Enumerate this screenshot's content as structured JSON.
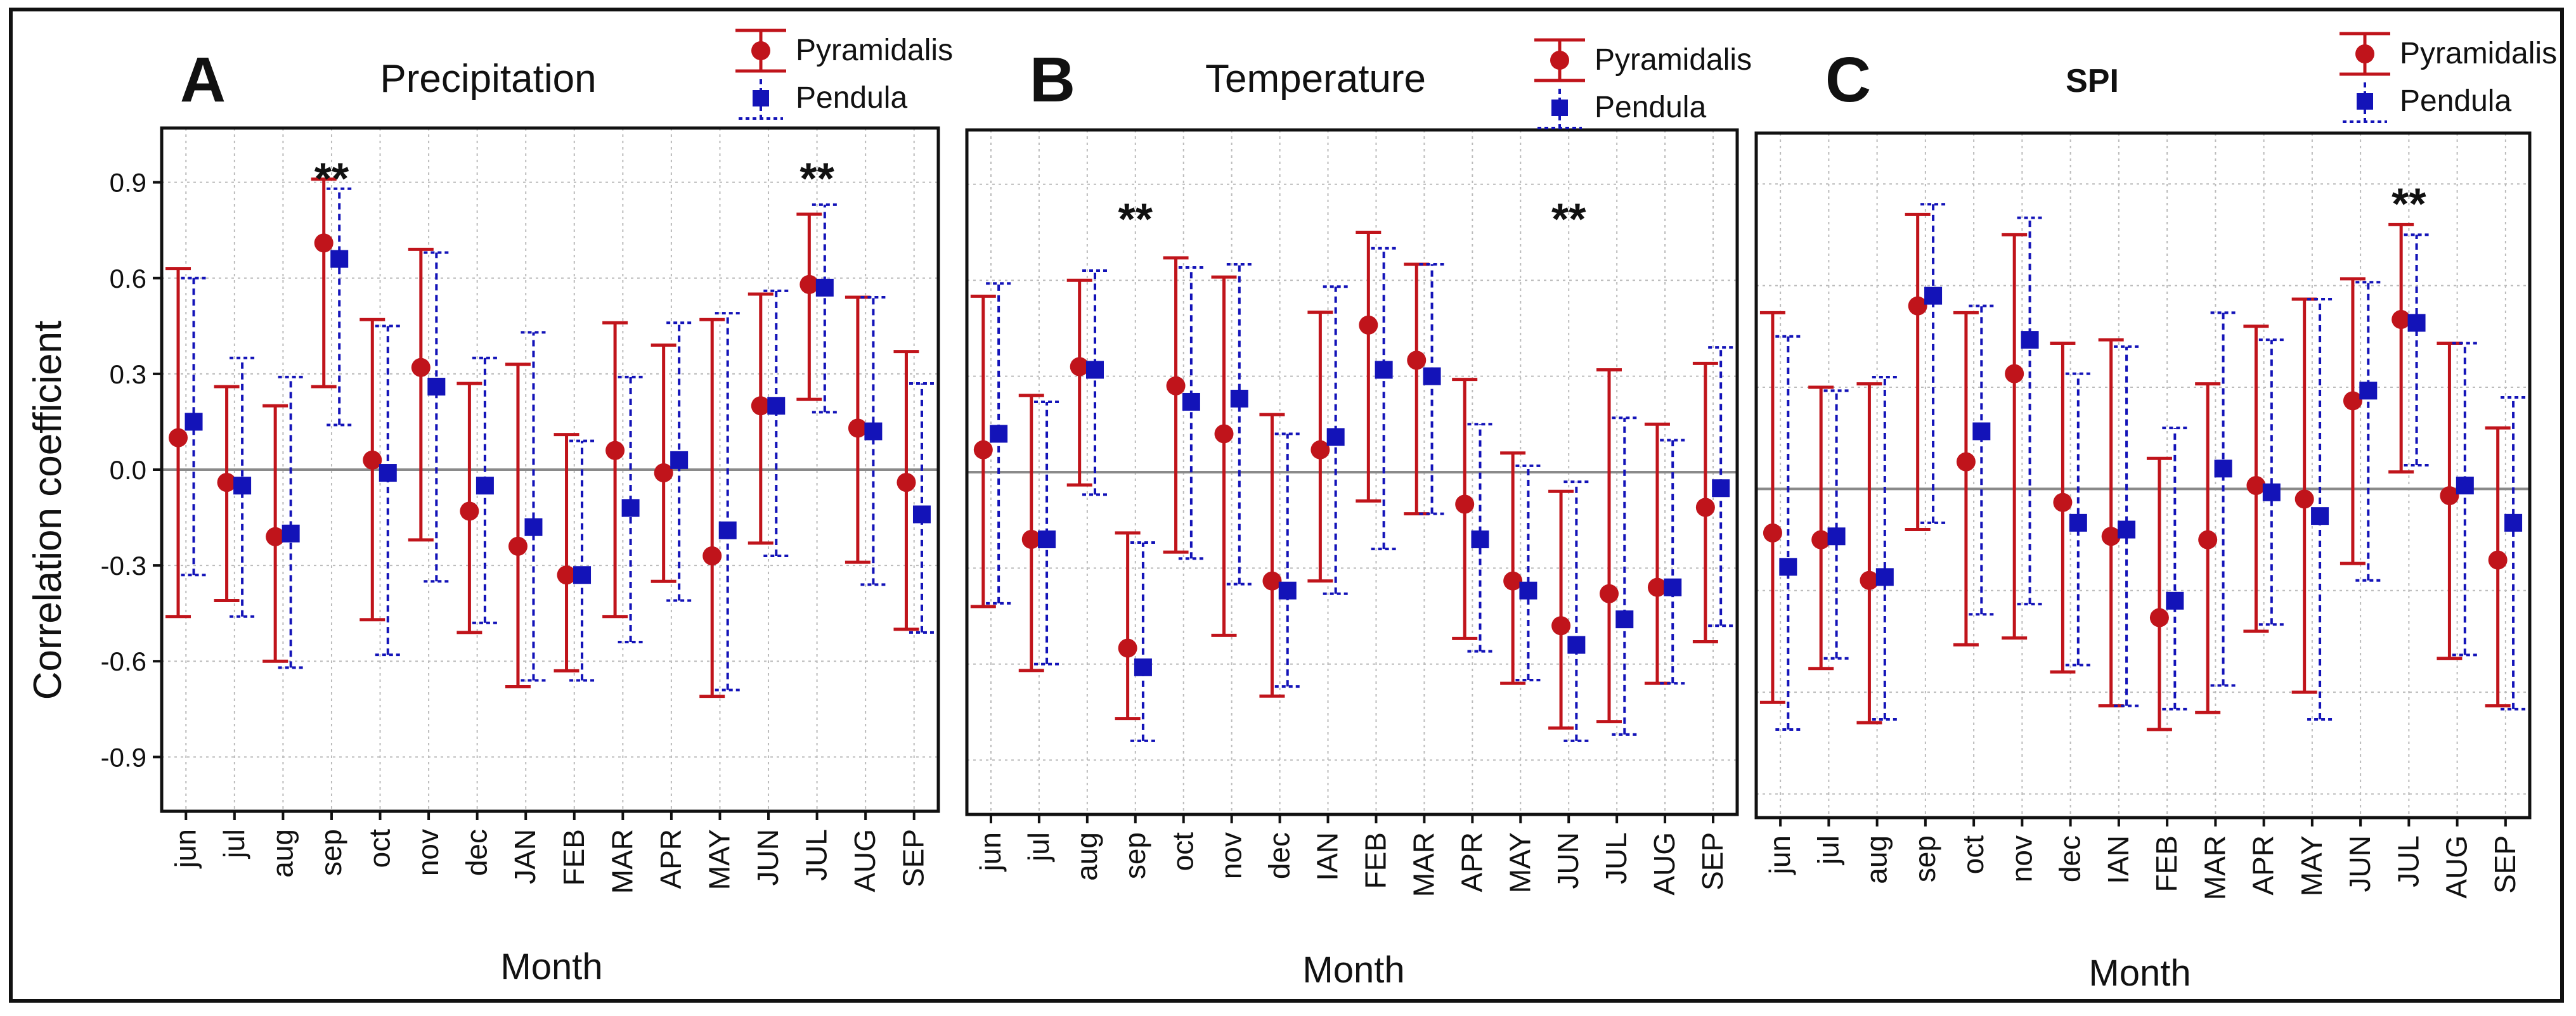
{
  "y_axis_label": "Correlation coefficient",
  "colors": {
    "pyramidalis": "#c0141b",
    "pendula": "#1313b8",
    "grid": "#bbbbbb",
    "zero_line": "#8a8a8a"
  },
  "legend": {
    "pyramidalis": "Pyramidalis",
    "pendula": "Pendula"
  },
  "chart_data": [
    {
      "type": "scatter",
      "panel_letter": "A",
      "title": "Precipitation",
      "xlabel": "Month",
      "ylabel": "Correlation coefficient",
      "ylim": [
        -1.07,
        1.07
      ],
      "y_ticks": [
        "0.9",
        "0.6",
        "0.3",
        "0.0",
        "-0.3",
        "-0.6",
        "-0.9"
      ],
      "categories": [
        "jun",
        "jul",
        "aug",
        "sep",
        "oct",
        "nov",
        "dec",
        "JAN",
        "FEB",
        "MAR",
        "APR",
        "MAY",
        "JUN",
        "JUL",
        "AUG",
        "SEP"
      ],
      "significance": [
        {
          "category": "sep",
          "label": "**",
          "y": 0.9
        },
        {
          "category": "JUL",
          "label": "**",
          "y": 0.9
        }
      ],
      "series": [
        {
          "name": "Pyramidalis",
          "marker": "circle",
          "error_bar": "solid",
          "values": [
            0.1,
            -0.04,
            -0.21,
            0.71,
            0.03,
            0.32,
            -0.13,
            -0.24,
            -0.33,
            0.06,
            -0.01,
            -0.27,
            0.2,
            0.58,
            0.13,
            -0.04
          ],
          "lower": [
            -0.46,
            -0.41,
            -0.6,
            0.26,
            -0.47,
            -0.22,
            -0.51,
            -0.68,
            -0.63,
            -0.46,
            -0.35,
            -0.71,
            -0.23,
            0.22,
            -0.29,
            -0.5
          ],
          "upper": [
            0.63,
            0.26,
            0.2,
            0.91,
            0.47,
            0.69,
            0.27,
            0.33,
            0.11,
            0.46,
            0.39,
            0.47,
            0.55,
            0.8,
            0.54,
            0.37
          ]
        },
        {
          "name": "Pendula",
          "marker": "square",
          "error_bar": "dashed",
          "values": [
            0.15,
            -0.05,
            -0.2,
            0.66,
            -0.01,
            0.26,
            -0.05,
            -0.18,
            -0.33,
            -0.12,
            0.03,
            -0.19,
            0.2,
            0.57,
            0.12,
            -0.14
          ],
          "lower": [
            -0.33,
            -0.46,
            -0.62,
            0.14,
            -0.58,
            -0.35,
            -0.48,
            -0.66,
            -0.66,
            -0.54,
            -0.41,
            -0.69,
            -0.27,
            0.18,
            -0.36,
            -0.51
          ],
          "upper": [
            0.6,
            0.35,
            0.29,
            0.88,
            0.45,
            0.68,
            0.35,
            0.43,
            0.09,
            0.29,
            0.46,
            0.49,
            0.56,
            0.83,
            0.54,
            0.27
          ]
        }
      ]
    },
    {
      "type": "scatter",
      "panel_letter": "B",
      "title": "Temperature",
      "xlabel": "Month",
      "ylim": [
        -1.07,
        1.07
      ],
      "categories": [
        "jun",
        "jul",
        "aug",
        "sep",
        "oct",
        "nov",
        "dec",
        "IAN",
        "FEB",
        "MAR",
        "APR",
        "MAY",
        "JUN",
        "JUL",
        "AUG",
        "SEP"
      ],
      "significance": [
        {
          "category": "sep",
          "label": "**",
          "y": 0.78
        },
        {
          "category": "JUN",
          "label": "**",
          "y": 0.78
        }
      ],
      "series": [
        {
          "name": "Pyramidalis",
          "marker": "circle",
          "error_bar": "solid",
          "values": [
            0.07,
            -0.21,
            0.33,
            -0.55,
            0.27,
            0.12,
            -0.34,
            0.07,
            0.46,
            0.35,
            -0.1,
            -0.34,
            -0.48,
            -0.38,
            -0.36,
            -0.11
          ],
          "lower": [
            -0.42,
            -0.62,
            -0.04,
            -0.77,
            -0.25,
            -0.51,
            -0.7,
            -0.34,
            -0.09,
            -0.13,
            -0.52,
            -0.66,
            -0.8,
            -0.78,
            -0.66,
            -0.53
          ],
          "upper": [
            0.55,
            0.24,
            0.6,
            -0.19,
            0.67,
            0.61,
            0.18,
            0.5,
            0.75,
            0.65,
            0.29,
            0.06,
            -0.06,
            0.32,
            0.15,
            0.34
          ]
        },
        {
          "name": "Pendula",
          "marker": "square",
          "error_bar": "dashed",
          "values": [
            0.12,
            -0.21,
            0.32,
            -0.61,
            0.22,
            0.23,
            -0.37,
            0.11,
            0.32,
            0.3,
            -0.21,
            -0.37,
            -0.54,
            -0.46,
            -0.36,
            -0.05
          ],
          "lower": [
            -0.41,
            -0.6,
            -0.07,
            -0.84,
            -0.27,
            -0.35,
            -0.67,
            -0.38,
            -0.24,
            -0.13,
            -0.56,
            -0.65,
            -0.84,
            -0.82,
            -0.66,
            -0.48
          ],
          "upper": [
            0.59,
            0.22,
            0.63,
            -0.22,
            0.64,
            0.65,
            0.12,
            0.58,
            0.7,
            0.65,
            0.15,
            0.02,
            -0.03,
            0.17,
            0.1,
            0.39
          ]
        }
      ]
    },
    {
      "type": "scatter",
      "panel_letter": "C",
      "title": "SPI",
      "xlabel": "Month",
      "ylim": [
        -0.97,
        1.05
      ],
      "categories": [
        "jun",
        "jul",
        "aug",
        "sep",
        "oct",
        "nov",
        "dec",
        "IAN",
        "FEB",
        "MAR",
        "APR",
        "MAY",
        "JUN",
        "JUL",
        "AUG",
        "SEP"
      ],
      "significance": [
        {
          "category": "JUL",
          "label": "**",
          "y": 0.83
        }
      ],
      "series": [
        {
          "name": "Pyramidalis",
          "marker": "circle",
          "error_bar": "solid",
          "values": [
            -0.13,
            -0.15,
            -0.27,
            0.54,
            0.08,
            0.34,
            -0.04,
            -0.14,
            -0.38,
            -0.15,
            0.01,
            -0.03,
            0.26,
            0.5,
            -0.02,
            -0.21
          ],
          "lower": [
            -0.63,
            -0.53,
            -0.69,
            -0.12,
            -0.46,
            -0.44,
            -0.54,
            -0.64,
            -0.71,
            -0.66,
            -0.42,
            -0.6,
            -0.22,
            0.05,
            -0.5,
            -0.64
          ],
          "upper": [
            0.52,
            0.3,
            0.31,
            0.81,
            0.52,
            0.75,
            0.43,
            0.44,
            0.09,
            0.31,
            0.48,
            0.56,
            0.62,
            0.78,
            0.43,
            0.18
          ]
        },
        {
          "name": "Pendula",
          "marker": "square",
          "error_bar": "dashed",
          "values": [
            -0.23,
            -0.14,
            -0.26,
            0.57,
            0.17,
            0.44,
            -0.1,
            -0.12,
            -0.33,
            0.06,
            -0.01,
            -0.08,
            0.29,
            0.49,
            0.01,
            -0.1
          ],
          "lower": [
            -0.71,
            -0.5,
            -0.68,
            -0.1,
            -0.37,
            -0.34,
            -0.52,
            -0.64,
            -0.65,
            -0.58,
            -0.4,
            -0.68,
            -0.27,
            0.07,
            -0.49,
            -0.65
          ],
          "upper": [
            0.45,
            0.29,
            0.33,
            0.84,
            0.54,
            0.8,
            0.34,
            0.42,
            0.18,
            0.52,
            0.44,
            0.56,
            0.61,
            0.75,
            0.43,
            0.27
          ]
        }
      ]
    }
  ]
}
